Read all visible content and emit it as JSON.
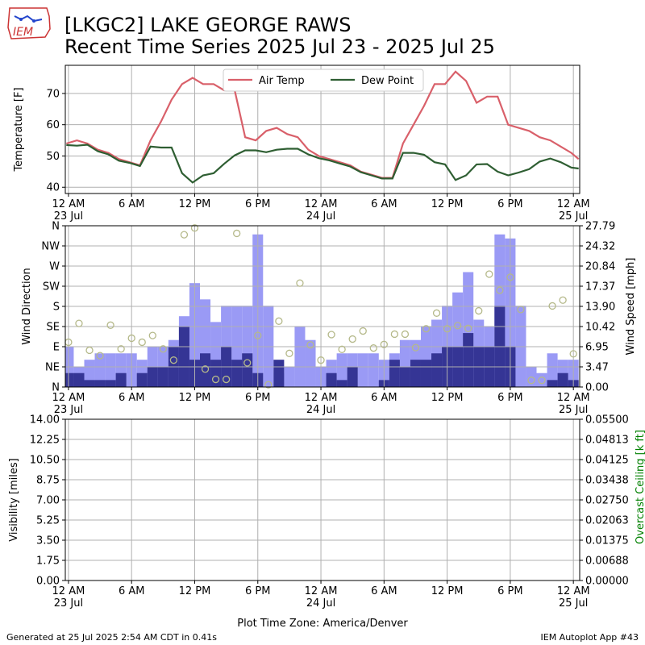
{
  "header": {
    "title_line1": "[LKGC2] LAKE GEORGE RAWS",
    "title_line2": "Recent Time Series 2025 Jul 23 - 2025 Jul 25",
    "logo_text": "IEM"
  },
  "footer": {
    "generated": "Generated at 25 Jul 2025 2:54 AM CDT in 0.41s",
    "app": "IEM Autoplot App #43"
  },
  "x_axis": {
    "ticks": [
      {
        "hour": 0,
        "line1": "12 AM",
        "line2": "23 Jul"
      },
      {
        "hour": 6,
        "line1": "6 AM",
        "line2": ""
      },
      {
        "hour": 12,
        "line1": "12 PM",
        "line2": ""
      },
      {
        "hour": 18,
        "line1": "6 PM",
        "line2": ""
      },
      {
        "hour": 24,
        "line1": "12 AM",
        "line2": "24 Jul"
      },
      {
        "hour": 30,
        "line1": "6 AM",
        "line2": ""
      },
      {
        "hour": 36,
        "line1": "12 PM",
        "line2": ""
      },
      {
        "hour": 42,
        "line1": "6 PM",
        "line2": ""
      },
      {
        "hour": 48,
        "line1": "12 AM",
        "line2": "25 Jul"
      }
    ],
    "xlabel": "Plot Time Zone: America/Denver"
  },
  "colors": {
    "air_temp": "#d9606a",
    "dew_point": "#2e5e32",
    "gust_bar": "#9a9af5",
    "speed_bar": "#353595",
    "direction_marker": "#b5b98a",
    "ceiling_axis": "#008000"
  },
  "chart_data": [
    {
      "type": "line",
      "ylabel": "Temperature [F]",
      "ylim": [
        38,
        79
      ],
      "yticks": [
        "40",
        "50",
        "60",
        "70"
      ],
      "grid": true,
      "legend_placement": "top-center",
      "x_unit": "hours since 23 Jul 12 AM",
      "series": [
        {
          "name": "Air Temp",
          "points": [
            [
              -0.2,
              54
            ],
            [
              0.8,
              55
            ],
            [
              1.8,
              54
            ],
            [
              2.8,
              52
            ],
            [
              3.8,
              51
            ],
            [
              4.8,
              49
            ],
            [
              5.8,
              48
            ],
            [
              6.8,
              47
            ],
            [
              7.8,
              55
            ],
            [
              8.8,
              61
            ],
            [
              9.8,
              68
            ],
            [
              10.8,
              73
            ],
            [
              11.8,
              75
            ],
            [
              12.8,
              73
            ],
            [
              13.8,
              73
            ],
            [
              14.8,
              71
            ],
            [
              15.8,
              71
            ],
            [
              16.8,
              56
            ],
            [
              17.8,
              55
            ],
            [
              18.8,
              58
            ],
            [
              19.8,
              59
            ],
            [
              20.8,
              57
            ],
            [
              21.8,
              56
            ],
            [
              22.8,
              52
            ],
            [
              23.8,
              50
            ],
            [
              24.8,
              49
            ],
            [
              25.8,
              48
            ],
            [
              26.8,
              47
            ],
            [
              27.8,
              45
            ],
            [
              28.8,
              44
            ],
            [
              29.8,
              43
            ],
            [
              30.8,
              43
            ],
            [
              31.8,
              54
            ],
            [
              32.8,
              60
            ],
            [
              33.8,
              66
            ],
            [
              34.8,
              73
            ],
            [
              35.8,
              73
            ],
            [
              36.8,
              77
            ],
            [
              37.8,
              74
            ],
            [
              38.8,
              67
            ],
            [
              39.8,
              69
            ],
            [
              40.8,
              69
            ],
            [
              41.8,
              60
            ],
            [
              42.8,
              59
            ],
            [
              43.8,
              58
            ],
            [
              44.8,
              56
            ],
            [
              45.8,
              55
            ],
            [
              46.8,
              53
            ],
            [
              47.8,
              51
            ],
            [
              48.5,
              49
            ]
          ]
        },
        {
          "name": "Dew Point",
          "points": [
            [
              -0.2,
              53.5
            ],
            [
              0.8,
              53.3
            ],
            [
              1.8,
              53.6
            ],
            [
              2.8,
              51.5
            ],
            [
              3.8,
              50.5
            ],
            [
              4.8,
              48.5
            ],
            [
              5.8,
              47.8
            ],
            [
              6.8,
              46.8
            ],
            [
              7.8,
              53
            ],
            [
              8.8,
              52.7
            ],
            [
              9.8,
              52.7
            ],
            [
              10.8,
              44.5
            ],
            [
              11.8,
              41.5
            ],
            [
              12.8,
              43.8
            ],
            [
              13.8,
              44.5
            ],
            [
              14.8,
              47.5
            ],
            [
              15.8,
              50.2
            ],
            [
              16.8,
              51.8
            ],
            [
              17.8,
              51.8
            ],
            [
              18.8,
              51.2
            ],
            [
              19.8,
              52
            ],
            [
              20.8,
              52.3
            ],
            [
              21.8,
              52.3
            ],
            [
              22.8,
              50.5
            ],
            [
              23.8,
              49.3
            ],
            [
              24.8,
              48.6
            ],
            [
              25.8,
              47.6
            ],
            [
              26.8,
              46.6
            ],
            [
              27.8,
              44.8
            ],
            [
              28.8,
              43.8
            ],
            [
              29.8,
              42.8
            ],
            [
              30.8,
              42.8
            ],
            [
              31.8,
              51
            ],
            [
              32.8,
              51
            ],
            [
              33.8,
              50.4
            ],
            [
              34.8,
              48
            ],
            [
              35.8,
              47.3
            ],
            [
              36.8,
              42.3
            ],
            [
              37.8,
              43.8
            ],
            [
              38.8,
              47.3
            ],
            [
              39.8,
              47.4
            ],
            [
              40.8,
              45
            ],
            [
              41.8,
              43.8
            ],
            [
              42.8,
              44.7
            ],
            [
              43.8,
              45.8
            ],
            [
              44.8,
              48.2
            ],
            [
              45.8,
              49.2
            ],
            [
              46.8,
              48
            ],
            [
              47.8,
              46.3
            ],
            [
              48.5,
              46
            ]
          ]
        }
      ]
    },
    {
      "type": "bar",
      "ylabel": "Wind Direction",
      "y2label": "Wind Speed [mph]",
      "direction_ticks": [
        "N",
        "NE",
        "E",
        "SE",
        "S",
        "SW",
        "W",
        "NW",
        "N"
      ],
      "speed_ticks": [
        "0.00",
        "3.47",
        "6.95",
        "10.42",
        "13.90",
        "17.37",
        "20.84",
        "24.32",
        "27.79"
      ],
      "y2lim": [
        0,
        27.79
      ],
      "grid": true,
      "x_unit": "hours since 23 Jul 12 AM",
      "series": [
        {
          "name": "Gust",
          "x": [
            0,
            1,
            2,
            3,
            4,
            5,
            6,
            7,
            8,
            9,
            10,
            11,
            12,
            13,
            14,
            15,
            16,
            17,
            18,
            19,
            20,
            21,
            22,
            23,
            24,
            25,
            26,
            27,
            28,
            29,
            30,
            31,
            32,
            33,
            34,
            35,
            36,
            37,
            38,
            39,
            40,
            41,
            42,
            43,
            44,
            45,
            46,
            47,
            48
          ],
          "values": [
            7,
            3.5,
            4.7,
            5.8,
            5.8,
            5.8,
            5.8,
            4.7,
            7,
            7,
            8.1,
            12.2,
            17.9,
            15.1,
            11.2,
            14,
            14,
            14,
            26.3,
            14,
            2.4,
            3.5,
            10.4,
            8.1,
            3.5,
            4.7,
            5.8,
            5.8,
            5.8,
            5.8,
            4.7,
            5.8,
            8.1,
            8.1,
            10.4,
            11.6,
            14,
            16.3,
            19.8,
            11.6,
            10.4,
            26.3,
            25.6,
            14,
            3.5,
            2.4,
            5.8,
            4.7,
            4.7
          ]
        },
        {
          "name": "Speed",
          "x": [
            0,
            1,
            2,
            3,
            4,
            5,
            6,
            7,
            8,
            9,
            10,
            11,
            12,
            13,
            14,
            15,
            16,
            17,
            18,
            19,
            20,
            21,
            22,
            23,
            24,
            25,
            26,
            27,
            28,
            29,
            30,
            31,
            32,
            33,
            34,
            35,
            36,
            37,
            38,
            39,
            40,
            41,
            42,
            43,
            44,
            45,
            46,
            47,
            48
          ],
          "values": [
            2.4,
            2.4,
            1.2,
            1.2,
            1.2,
            2.4,
            0,
            2.4,
            3.5,
            3.5,
            7,
            10.4,
            4.7,
            5.8,
            4.7,
            7,
            4.7,
            5.8,
            2.4,
            0,
            4.7,
            0,
            0,
            0,
            0,
            2.4,
            1.2,
            3.5,
            0,
            0,
            1.2,
            4.7,
            3.5,
            4.7,
            4.7,
            5.8,
            7,
            7,
            9.3,
            7,
            7,
            14,
            7,
            0,
            0,
            0,
            1.2,
            2.4,
            1.2
          ]
        },
        {
          "name": "Direction",
          "x": [
            0,
            1,
            2,
            3,
            4,
            5,
            6,
            7,
            8,
            9,
            10,
            11,
            12,
            13,
            14,
            15,
            16,
            17,
            18,
            19,
            20,
            21,
            22,
            23,
            24,
            25,
            26,
            27,
            28,
            29,
            30,
            31,
            32,
            33,
            34,
            35,
            36,
            37,
            38,
            39,
            40,
            41,
            42,
            43,
            44,
            45,
            46,
            47,
            48
          ],
          "values": [
            100,
            142,
            82,
            70,
            138,
            85,
            109,
            100,
            115,
            85,
            60,
            340,
            355,
            40,
            17,
            17,
            343,
            54,
            115,
            5,
            147,
            75,
            232,
            94,
            60,
            117,
            84,
            107,
            125,
            87,
            95,
            118,
            118,
            88,
            130,
            165,
            130,
            137,
            131,
            170,
            252,
            216,
            245,
            173,
            15,
            15,
            181,
            194,
            74
          ]
        }
      ]
    },
    {
      "type": "line",
      "ylabel": "Visibility [miles]",
      "y2label": "Overcast Ceiling [k ft]",
      "ylim": [
        0,
        14
      ],
      "y2lim": [
        0,
        0.055
      ],
      "vis_ticks": [
        "0.00",
        "1.75",
        "3.50",
        "5.25",
        "7.00",
        "8.75",
        "10.50",
        "12.25",
        "14.00"
      ],
      "ceil_ticks": [
        "0.00000",
        "0.00688",
        "0.01375",
        "0.02063",
        "0.02750",
        "0.03438",
        "0.04125",
        "0.04813",
        "0.05500"
      ],
      "grid": true,
      "series": []
    }
  ]
}
